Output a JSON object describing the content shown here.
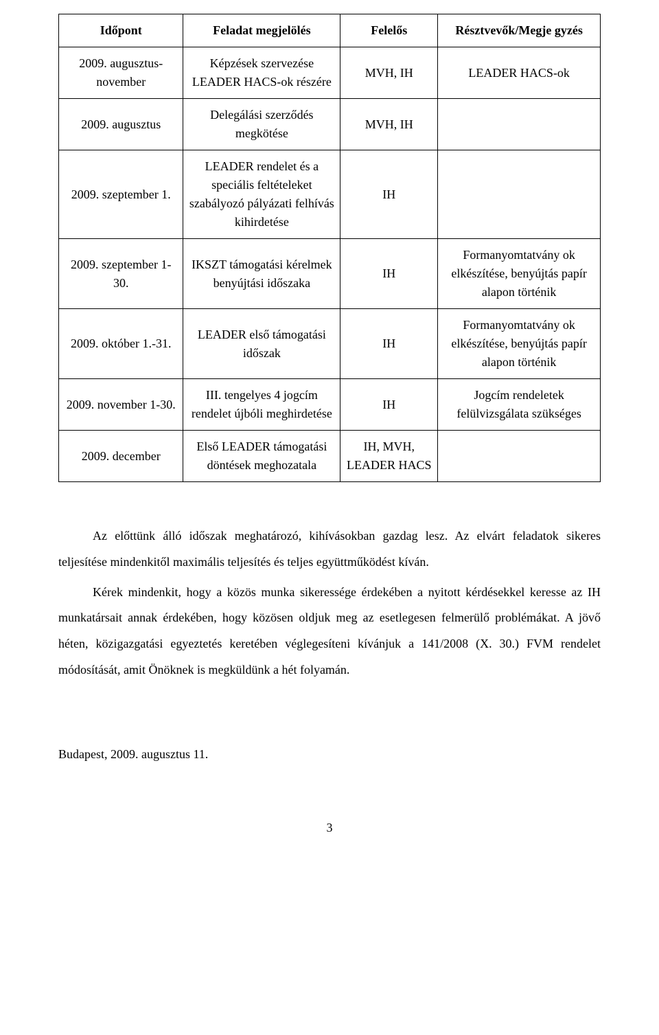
{
  "table": {
    "columns": [
      "Időpont",
      "Feladat megjelölés",
      "Felelős",
      "Résztvevők/Megje gyzés"
    ],
    "rows": [
      {
        "c1": "2009. augusztus-november",
        "c2": "Képzések szervezése LEADER HACS-ok részére",
        "c3": "MVH, IH",
        "c4": "LEADER HACS-ok"
      },
      {
        "c1": "2009. augusztus",
        "c2": "Delegálási szerződés megkötése",
        "c3": "MVH, IH",
        "c4": ""
      },
      {
        "c1": "2009. szeptember 1.",
        "c2": "LEADER rendelet és a speciális feltételeket szabályozó pályázati felhívás kihirdetése",
        "c3": "IH",
        "c4": ""
      },
      {
        "c1": "2009. szeptember 1-30.",
        "c2": "IKSZT támogatási kérelmek benyújtási időszaka",
        "c3": "IH",
        "c4": "Formanyomtatvány ok elkészítése, benyújtás papír alapon történik"
      },
      {
        "c1": "2009. október 1.-31.",
        "c2": "LEADER első támogatási időszak",
        "c3": "IH",
        "c4": "Formanyomtatvány ok elkészítése, benyújtás papír alapon történik"
      },
      {
        "c1": "2009. november 1-30.",
        "c2": "III. tengelyes 4 jogcím rendelet újbóli meghirdetése",
        "c3": "IH",
        "c4": "Jogcím rendeletek felülvizsgálata szükséges"
      },
      {
        "c1": "2009. december",
        "c2": "Első LEADER támogatási döntések meghozatala",
        "c3": "IH, MVH, LEADER HACS",
        "c4": ""
      }
    ]
  },
  "paragraphs": {
    "p1": "Az előttünk álló időszak meghatározó, kihívásokban gazdag lesz. Az elvárt feladatok sikeres teljesítése mindenkitől maximális teljesítés és teljes együttműködést kíván.",
    "p2": "Kérek mindenkit, hogy a közös munka sikeressége érdekében a nyitott kérdésekkel keresse az IH munkatársait annak érdekében, hogy közösen oldjuk meg az esetlegesen felmerülő problémákat. A jövő héten, közigazgatási egyeztetés keretében véglegesíteni kívánjuk a 141/2008 (X. 30.) FVM rendelet módosítását, amit Önöknek is megküldünk a hét folyamán."
  },
  "closing": "Budapest, 2009. augusztus 11.",
  "page_number": "3"
}
